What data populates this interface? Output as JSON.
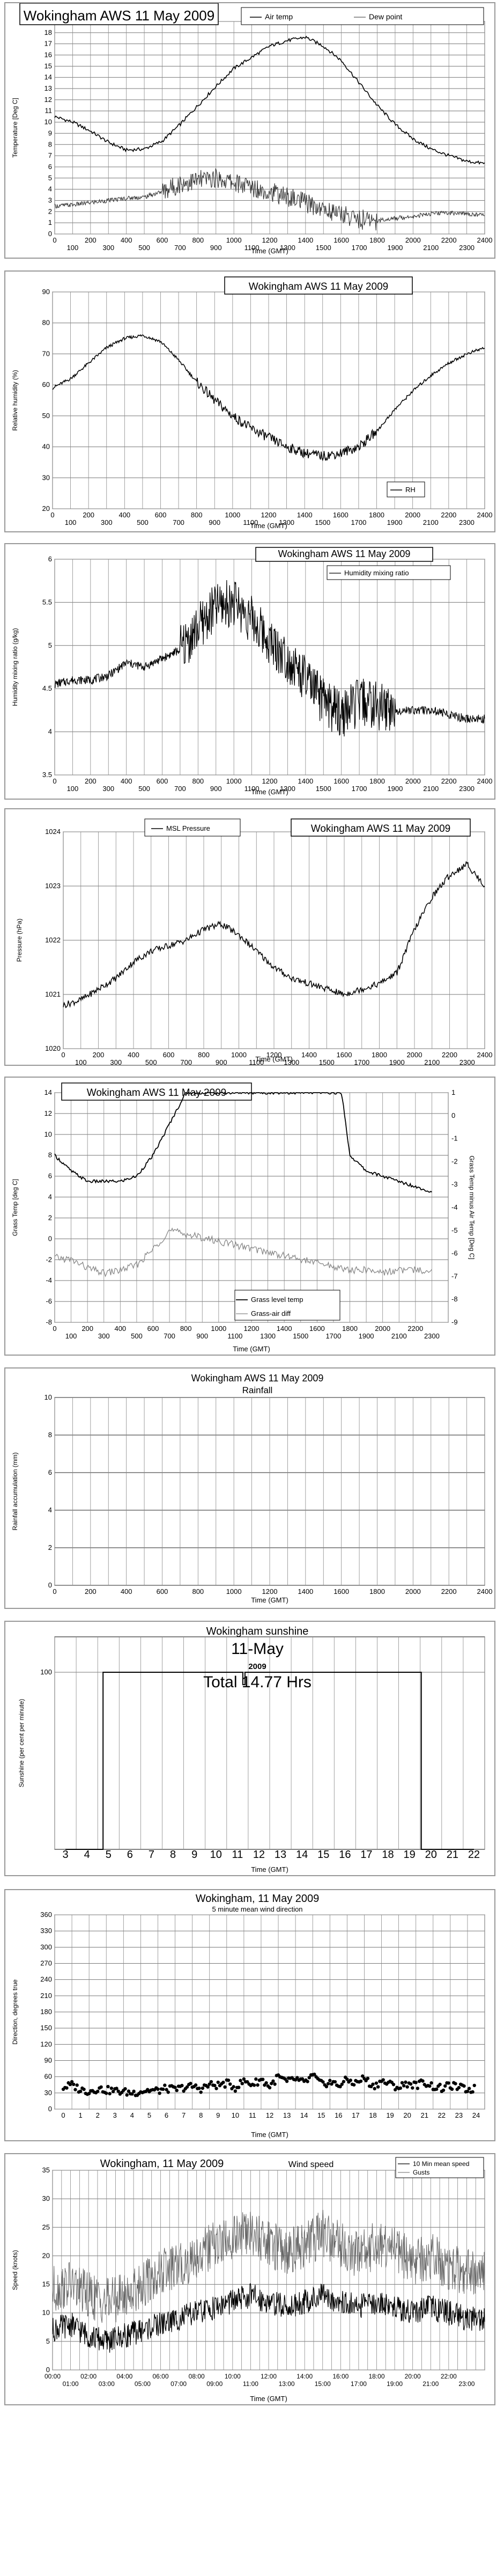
{
  "chart_data": [
    {
      "type": "line",
      "title": "Wokingham AWS 11 May 2009",
      "xlabel": "Time (GMT)",
      "ylabel": "Temperature [Deg C]",
      "xlim": [
        0,
        2400
      ],
      "ylim": [
        0,
        19
      ],
      "x_ticks_major": [
        "0",
        "200",
        "400",
        "600",
        "800",
        "1000",
        "1200",
        "1400",
        "1600",
        "1800",
        "2000",
        "2200",
        "2400"
      ],
      "x_ticks_minor": [
        "100",
        "300",
        "500",
        "700",
        "900",
        "1100",
        "1300",
        "1500",
        "1700",
        "1900",
        "2100",
        "2300"
      ],
      "y_ticks": [
        "0",
        "1",
        "2",
        "3",
        "4",
        "5",
        "6",
        "7",
        "8",
        "9",
        "10",
        "11",
        "12",
        "13",
        "14",
        "15",
        "16",
        "17",
        "18",
        "19"
      ],
      "grid": true,
      "legend_position": "top-right",
      "series": [
        {
          "name": "Air temp",
          "x": [
            0,
            100,
            200,
            300,
            400,
            500,
            600,
            700,
            800,
            900,
            1000,
            1100,
            1200,
            1300,
            1400,
            1500,
            1600,
            1700,
            1800,
            1900,
            2000,
            2100,
            2200,
            2300,
            2400
          ],
          "values": [
            10.5,
            10,
            9.2,
            8.2,
            7.5,
            7.6,
            8.3,
            9.8,
            11.5,
            13.2,
            14.8,
            15.8,
            16.8,
            17.3,
            17.6,
            16.8,
            15.5,
            13.5,
            11.5,
            9.8,
            8.5,
            7.6,
            7,
            6.5,
            6.3
          ]
        },
        {
          "name": "Dew point",
          "x": [
            0,
            100,
            200,
            300,
            400,
            500,
            600,
            700,
            800,
            900,
            1000,
            1100,
            1200,
            1300,
            1400,
            1500,
            1600,
            1700,
            1800,
            1900,
            2000,
            2100,
            2200,
            2300,
            2400
          ],
          "values": [
            2.5,
            2.6,
            2.8,
            3,
            3.2,
            3.3,
            3.8,
            4.5,
            4.8,
            5,
            4.6,
            4.2,
            3.8,
            3.3,
            2.8,
            2.2,
            1.8,
            1.3,
            1.2,
            1.4,
            1.6,
            1.8,
            1.9,
            1.8,
            1.7
          ]
        }
      ]
    },
    {
      "type": "line",
      "title": "Wokingham AWS 11 May 2009",
      "xlabel": "Time (GMT)",
      "ylabel": "Relative humidity (%)",
      "xlim": [
        0,
        2400
      ],
      "ylim": [
        20,
        90
      ],
      "x_ticks_major": [
        "0",
        "200",
        "400",
        "600",
        "800",
        "1000",
        "1200",
        "1400",
        "1600",
        "1800",
        "2000",
        "2200",
        "2400"
      ],
      "x_ticks_minor": [
        "100",
        "300",
        "500",
        "700",
        "900",
        "1100",
        "1300",
        "1500",
        "1700",
        "1900",
        "2100",
        "2300"
      ],
      "y_ticks": [
        "20",
        "30",
        "40",
        "50",
        "60",
        "70",
        "80",
        "90"
      ],
      "grid": true,
      "legend_position": "bottom-right",
      "series": [
        {
          "name": "RH",
          "x": [
            0,
            100,
            200,
            300,
            400,
            500,
            600,
            700,
            800,
            900,
            1000,
            1100,
            1200,
            1300,
            1400,
            1500,
            1600,
            1700,
            1800,
            1900,
            2000,
            2100,
            2200,
            2300,
            2400
          ],
          "values": [
            59,
            62,
            67,
            72,
            75,
            76,
            74,
            68,
            61,
            55,
            50,
            46,
            43,
            40,
            38,
            37,
            38,
            40,
            45,
            52,
            58,
            63,
            67,
            70,
            72
          ]
        }
      ]
    },
    {
      "type": "line",
      "title": "Wokingham AWS 11 May 2009",
      "xlabel": "Time (GMT)",
      "ylabel": "Humidity mixing ratio (g/kg)",
      "xlim": [
        0,
        2400
      ],
      "ylim": [
        3.5,
        6
      ],
      "x_ticks_major": [
        "0",
        "200",
        "400",
        "600",
        "800",
        "1000",
        "1200",
        "1400",
        "1600",
        "1800",
        "2000",
        "2200",
        "2400"
      ],
      "x_ticks_minor": [
        "100",
        "300",
        "500",
        "700",
        "900",
        "1100",
        "1300",
        "1500",
        "1700",
        "1900",
        "2100",
        "2300"
      ],
      "y_ticks": [
        "3.5",
        "4",
        "4.5",
        "5",
        "5.5",
        "6"
      ],
      "grid": true,
      "legend_position": "top-right",
      "series": [
        {
          "name": "Humidity mixing ratio",
          "x": [
            0,
            100,
            200,
            300,
            400,
            500,
            600,
            700,
            800,
            900,
            1000,
            1100,
            1200,
            1300,
            1400,
            1500,
            1600,
            1700,
            1800,
            1900,
            2000,
            2100,
            2200,
            2300,
            2400
          ],
          "values": [
            4.55,
            4.6,
            4.6,
            4.65,
            4.8,
            4.75,
            4.85,
            4.95,
            5.2,
            5.45,
            5.5,
            5.3,
            5.05,
            4.85,
            4.6,
            4.35,
            4.2,
            4.35,
            4.3,
            4.25,
            4.25,
            4.25,
            4.2,
            4.15,
            4.15
          ]
        }
      ]
    },
    {
      "type": "line",
      "title": "Wokingham AWS 11 May 2009",
      "xlabel": "Time (GMT)",
      "ylabel": "Pressure (hPa)",
      "xlim": [
        0,
        2400
      ],
      "ylim": [
        1020,
        1024
      ],
      "x_ticks_major": [
        "0",
        "200",
        "400",
        "600",
        "800",
        "1000",
        "1200",
        "1400",
        "1600",
        "1800",
        "2000",
        "2200",
        "2400"
      ],
      "x_ticks_minor": [
        "100",
        "300",
        "500",
        "700",
        "900",
        "1100",
        "1300",
        "1500",
        "1700",
        "1900",
        "2100",
        "2300"
      ],
      "y_ticks": [
        "1020",
        "1021",
        "1022",
        "1023",
        "1024"
      ],
      "grid": true,
      "legend_position": "top-left",
      "series": [
        {
          "name": "MSL Pressure",
          "x": [
            0,
            100,
            200,
            300,
            400,
            500,
            600,
            700,
            800,
            900,
            1000,
            1100,
            1200,
            1300,
            1400,
            1500,
            1600,
            1700,
            1800,
            1900,
            2000,
            2100,
            2200,
            2300,
            2400
          ],
          "values": [
            1020.8,
            1020.9,
            1021.1,
            1021.3,
            1021.6,
            1021.8,
            1021.9,
            1022,
            1022.2,
            1022.3,
            1022.1,
            1021.8,
            1021.5,
            1021.3,
            1021.2,
            1021.1,
            1021,
            1021.1,
            1021.2,
            1021.4,
            1022.2,
            1022.8,
            1023.2,
            1023.4,
            1023
          ]
        }
      ]
    },
    {
      "type": "line",
      "title": "Wokingham AWS 11 May 2009",
      "xlabel": "Time (GMT)",
      "ylabel": "Grass Temp [deg C]",
      "ylabel_right": "Grass Temp minus Air Temp [Deg C]",
      "xlim": [
        0,
        2400
      ],
      "ylim": [
        -8,
        14
      ],
      "ylim_right": [
        -9,
        1
      ],
      "x_ticks_major": [
        "0",
        "200",
        "400",
        "600",
        "800",
        "1000",
        "1200",
        "1400",
        "1600",
        "1800",
        "2000",
        "2200"
      ],
      "x_ticks_minor": [
        "100",
        "300",
        "500",
        "700",
        "900",
        "1100",
        "1300",
        "1500",
        "1700",
        "1900",
        "2100",
        "2300"
      ],
      "y_ticks": [
        "-8",
        "-6",
        "-4",
        "-2",
        "0",
        "2",
        "4",
        "6",
        "8",
        "10",
        "12",
        "14"
      ],
      "y_ticks_right": [
        "-9",
        "-8",
        "-7",
        "-6",
        "-5",
        "-4",
        "-3",
        "-2",
        "-1",
        "0",
        "1"
      ],
      "grid": true,
      "legend_position": "bottom-right",
      "series": [
        {
          "name": "Grass level temp",
          "x": [
            0,
            100,
            200,
            300,
            400,
            500,
            600,
            700,
            800,
            1750,
            1800,
            1900,
            2000,
            2100,
            2200,
            2300
          ],
          "values": [
            8,
            6.5,
            5.5,
            5.5,
            5.5,
            6,
            8,
            11,
            14,
            14,
            8,
            6.5,
            6,
            5.5,
            5,
            4.5
          ]
        },
        {
          "name": "Grass-air diff",
          "x": [
            0,
            100,
            200,
            300,
            400,
            500,
            600,
            700,
            1800,
            1900,
            2000,
            2100,
            2200,
            2300
          ],
          "values": [
            -1.8,
            -2,
            -2.8,
            -3.3,
            -3,
            -2.5,
            -1,
            0.8,
            -3,
            -3,
            -3.2,
            -3,
            -3,
            -3
          ]
        }
      ]
    },
    {
      "type": "line",
      "title": "Wokingham AWS 11 May 2009",
      "subtitle": "Rainfall",
      "xlabel": "Time (GMT)",
      "ylabel": "Rainfall accumulation (mm)",
      "xlim": [
        0,
        2400
      ],
      "ylim": [
        0,
        10
      ],
      "x_ticks": [
        "0",
        "200",
        "400",
        "600",
        "800",
        "1000",
        "1200",
        "1400",
        "1600",
        "1800",
        "2000",
        "2200",
        "2400"
      ],
      "y_ticks": [
        "0",
        "2",
        "4",
        "6",
        "8",
        "10"
      ],
      "grid": true,
      "series": []
    },
    {
      "type": "area",
      "title": "Wokingham sunshine",
      "subtitle": "11-May",
      "year": "2009",
      "total": "Total 14.77 Hrs",
      "xlabel": "Time (GMT)",
      "ylabel": "Sunshine (per cent per minute)",
      "xlim": [
        2.5,
        22.5
      ],
      "ylim": [
        0,
        120
      ],
      "x_ticks": [
        "3",
        "4",
        "5",
        "6",
        "7",
        "8",
        "9",
        "10",
        "11",
        "12",
        "13",
        "14",
        "15",
        "16",
        "17",
        "18",
        "19",
        "20",
        "21",
        "22"
      ],
      "y_ticks": [
        "100"
      ],
      "grid": true,
      "series": [
        {
          "name": "",
          "x": [
            3,
            4.75,
            4.75,
            11.25,
            11.25,
            11.35,
            11.35,
            19.55,
            19.55,
            22
          ],
          "values": [
            0,
            0,
            100,
            100,
            93,
            93,
            100,
            100,
            0,
            0
          ]
        }
      ]
    },
    {
      "type": "scatter",
      "title": "Wokingham,  11 May 2009",
      "subtitle": "5 minute mean wind direction",
      "xlabel": "Time (GMT)",
      "ylabel": "Direction, degrees true",
      "xlim": [
        -0.5,
        24.5
      ],
      "ylim": [
        0,
        360
      ],
      "x_ticks": [
        "0",
        "1",
        "2",
        "3",
        "4",
        "5",
        "6",
        "7",
        "8",
        "9",
        "10",
        "11",
        "12",
        "13",
        "14",
        "15",
        "16",
        "17",
        "18",
        "19",
        "20",
        "21",
        "22",
        "23",
        "24"
      ],
      "y_ticks": [
        "0",
        "30",
        "60",
        "90",
        "120",
        "150",
        "180",
        "210",
        "240",
        "270",
        "300",
        "330",
        "360"
      ],
      "grid": true,
      "series": [
        {
          "name": "",
          "x": [
            0,
            0.5,
            1,
            1.5,
            2,
            2.5,
            3,
            3.5,
            4,
            4.5,
            5,
            5.5,
            6,
            6.5,
            7,
            7.5,
            8,
            8.5,
            9,
            9.5,
            10,
            10.5,
            11,
            11.5,
            12,
            12.5,
            13,
            13.5,
            14,
            14.5,
            15,
            15.5,
            16,
            16.5,
            17,
            17.5,
            18,
            18.5,
            19,
            19.5,
            20,
            20.5,
            21,
            21.5,
            22,
            22.5,
            23,
            23.5,
            24
          ],
          "values": [
            40,
            45,
            36,
            33,
            38,
            35,
            34,
            32,
            30,
            33,
            35,
            34,
            38,
            36,
            40,
            42,
            38,
            45,
            44,
            48,
            40,
            52,
            46,
            55,
            42,
            60,
            50,
            56,
            48,
            62,
            46,
            50,
            44,
            54,
            48,
            58,
            42,
            52,
            46,
            40,
            48,
            44,
            50,
            42,
            38,
            44,
            40,
            36,
            38
          ]
        }
      ]
    },
    {
      "type": "line",
      "title": "Wokingham,  11 May 2009",
      "subtitle": "Wind speed",
      "xlabel": "Time (GMT)",
      "ylabel": "Speed (knots)",
      "xlim": [
        0,
        24
      ],
      "ylim": [
        0,
        35
      ],
      "x_ticks_major": [
        "00:00",
        "02:00",
        "04:00",
        "06:00",
        "08:00",
        "10:00",
        "12:00",
        "14:00",
        "16:00",
        "18:00",
        "20:00",
        "22:00"
      ],
      "x_ticks_minor": [
        "01:00",
        "03:00",
        "05:00",
        "07:00",
        "09:00",
        "11:00",
        "13:00",
        "15:00",
        "17:00",
        "19:00",
        "21:00",
        "23:00"
      ],
      "y_ticks": [
        "0",
        "5",
        "10",
        "15",
        "20",
        "25",
        "30",
        "35"
      ],
      "grid": true,
      "legend_position": "top-right",
      "series": [
        {
          "name": "10 Min mean speed",
          "x": [
            0,
            1,
            2,
            3,
            4,
            5,
            6,
            7,
            8,
            9,
            10,
            11,
            12,
            13,
            14,
            15,
            16,
            17,
            18,
            19,
            20,
            21,
            22,
            23,
            24
          ],
          "values": [
            7,
            8,
            6,
            5,
            6,
            7,
            8,
            9,
            10,
            11,
            12,
            13,
            12,
            11,
            12,
            13,
            12,
            11,
            12,
            11,
            10,
            11,
            10,
            9,
            9
          ]
        },
        {
          "name": "Gusts",
          "x": [
            0,
            1,
            2,
            3,
            4,
            5,
            6,
            7,
            8,
            9,
            10,
            11,
            12,
            13,
            14,
            15,
            16,
            17,
            18,
            19,
            20,
            21,
            22,
            23,
            24
          ],
          "values": [
            14,
            15,
            13,
            12,
            13,
            15,
            17,
            18,
            20,
            22,
            23,
            24,
            22,
            21,
            22,
            24,
            22,
            20,
            22,
            21,
            19,
            20,
            18,
            17,
            17
          ]
        }
      ]
    }
  ]
}
